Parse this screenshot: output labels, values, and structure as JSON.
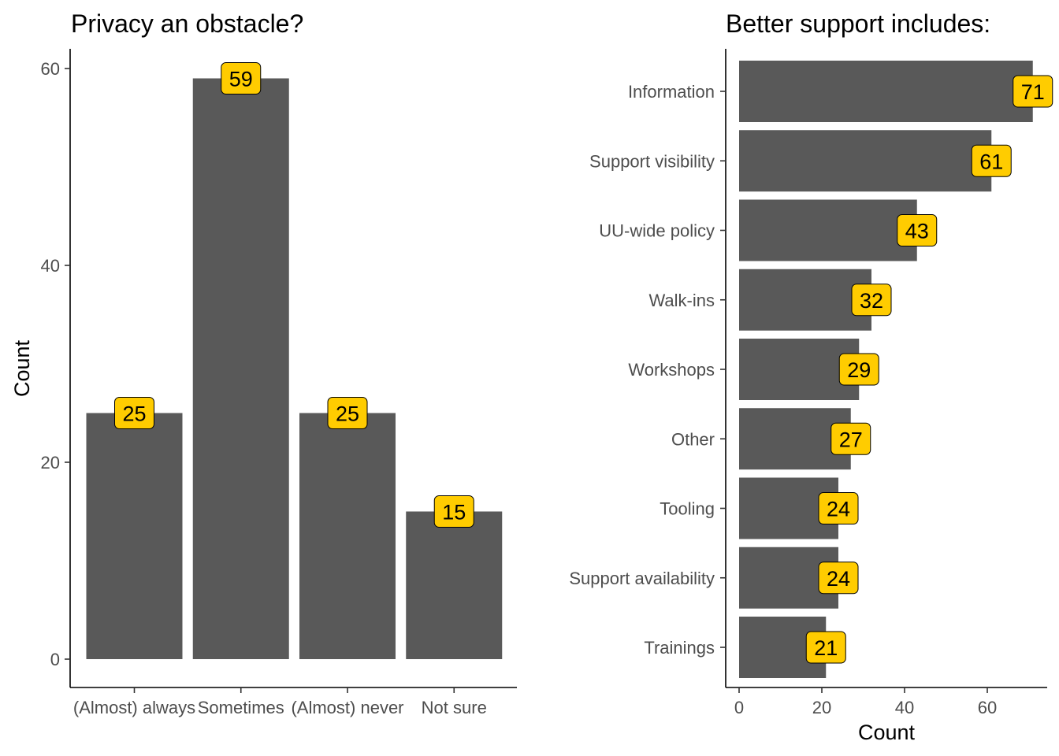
{
  "chart_data": [
    {
      "type": "bar",
      "orientation": "vertical",
      "title": "Privacy an obstacle?",
      "xlabel": "",
      "ylabel": "Count",
      "categories": [
        "(Almost) always",
        "Sometimes",
        "(Almost) never",
        "Not sure"
      ],
      "values": [
        25,
        59,
        25,
        15
      ],
      "ylim": [
        0,
        62
      ],
      "yticks": [
        0,
        20,
        40,
        60
      ],
      "grid": false,
      "bar_color": "#595959",
      "label_fill": "#FFCC00"
    },
    {
      "type": "bar",
      "orientation": "horizontal",
      "title": "Better support includes:",
      "xlabel": "Count",
      "ylabel": "",
      "categories": [
        "Information",
        "Support visibility",
        "UU-wide policy",
        "Walk-ins",
        "Workshops",
        "Other",
        "Tooling",
        "Support availability",
        "Trainings"
      ],
      "values": [
        71,
        61,
        43,
        32,
        29,
        27,
        24,
        24,
        21
      ],
      "xlim": [
        0,
        73
      ],
      "xticks": [
        0,
        20,
        40,
        60
      ],
      "grid": false,
      "bar_color": "#595959",
      "label_fill": "#FFCC00"
    }
  ]
}
